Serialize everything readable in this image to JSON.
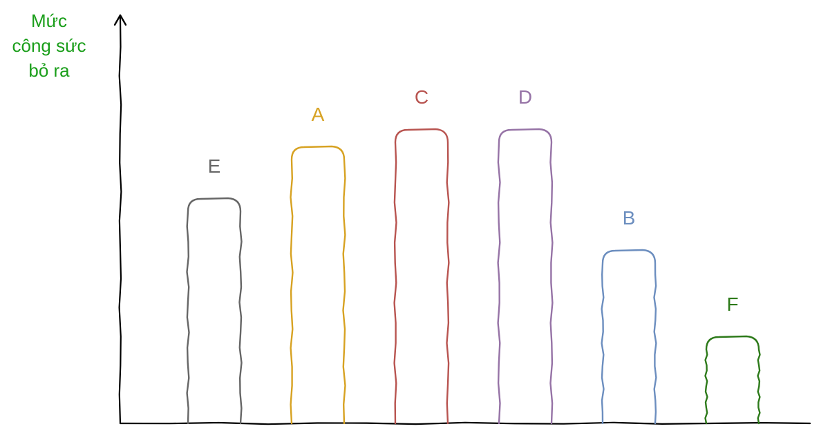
{
  "chart_data": {
    "type": "bar",
    "style": "hand-drawn outline",
    "ylabel_lines": [
      "Mức",
      "công sức",
      "bỏ ra"
    ],
    "ylabel_color": "#1a9e1a",
    "categories": [
      "E",
      "A",
      "C",
      "D",
      "B",
      "F"
    ],
    "values": [
      13,
      16,
      17,
      17,
      10,
      5
    ],
    "colors": [
      "#666666",
      "#d7a222",
      "#b85450",
      "#9673a6",
      "#6c8ebf",
      "#2d7a1a"
    ],
    "ylim": [
      0,
      23
    ],
    "grid": false,
    "legend": "none"
  }
}
